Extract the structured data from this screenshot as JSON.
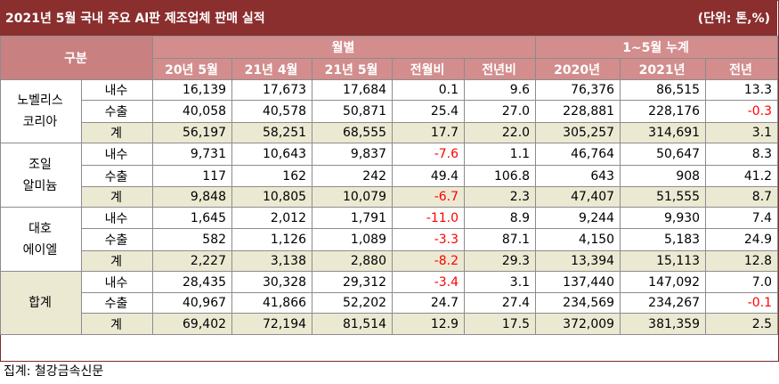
{
  "title": "2021년 5월 국내 주요 Al판  제조업체 판매 실적",
  "unit": "(단위: 톤,%)",
  "headers": {
    "category": "구분",
    "monthly_group": "월별",
    "cumulative_group": "1~5월 누계",
    "columns": [
      "20년 5월",
      "21년 4월",
      "21년 5월",
      "전월비",
      "전년비",
      "2020년",
      "2021년",
      "전년"
    ]
  },
  "companies": [
    {
      "name": "노벨리스 코리아",
      "rows": [
        {
          "label": "내수",
          "cells": [
            "16,139",
            "17,673",
            "17,684",
            "0.1",
            "9.6",
            "76,376",
            "86,515",
            "13.3"
          ]
        },
        {
          "label": "수출",
          "cells": [
            "40,058",
            "40,578",
            "50,871",
            "25.4",
            "27.0",
            "228,881",
            "228,176",
            "-0.3"
          ]
        },
        {
          "label": "계",
          "cells": [
            "56,197",
            "58,251",
            "68,555",
            "17.7",
            "22.0",
            "305,257",
            "314,691",
            "3.1"
          ]
        }
      ]
    },
    {
      "name": "조일 알미늄",
      "rows": [
        {
          "label": "내수",
          "cells": [
            "9,731",
            "10,643",
            "9,837",
            "-7.6",
            "1.1",
            "46,764",
            "50,647",
            "8.3"
          ]
        },
        {
          "label": "수출",
          "cells": [
            "117",
            "162",
            "242",
            "49.4",
            "106.8",
            "643",
            "908",
            "41.2"
          ]
        },
        {
          "label": "계",
          "cells": [
            "9,848",
            "10,805",
            "10,079",
            "-6.7",
            "2.3",
            "47,407",
            "51,555",
            "8.7"
          ]
        }
      ]
    },
    {
      "name": "대호 에이엘",
      "rows": [
        {
          "label": "내수",
          "cells": [
            "1,645",
            "2,012",
            "1,791",
            "-11.0",
            "8.9",
            "9,244",
            "9,930",
            "7.4"
          ]
        },
        {
          "label": "수출",
          "cells": [
            "582",
            "1,126",
            "1,089",
            "-3.3",
            "87.1",
            "4,150",
            "5,183",
            "24.9"
          ]
        },
        {
          "label": "계",
          "cells": [
            "2,227",
            "3,138",
            "2,880",
            "-8.2",
            "29.3",
            "13,394",
            "15,113",
            "12.8"
          ]
        }
      ]
    },
    {
      "name": "합계",
      "rows": [
        {
          "label": "내수",
          "cells": [
            "28,435",
            "30,328",
            "29,312",
            "-3.4",
            "3.1",
            "137,440",
            "147,092",
            "7.0"
          ]
        },
        {
          "label": "수출",
          "cells": [
            "40,967",
            "41,866",
            "52,202",
            "24.7",
            "27.4",
            "234,569",
            "234,267",
            "-0.1"
          ]
        },
        {
          "label": "계",
          "cells": [
            "69,402",
            "72,194",
            "81,514",
            "12.9",
            "17.5",
            "372,009",
            "381,359",
            "2.5"
          ]
        }
      ]
    }
  ],
  "source": "집계: 철강금속신문",
  "colors": {
    "title_bg": "#8b2e2e",
    "header_bg": "#d38d8d",
    "total_row_bg": "#ece9d3",
    "negative": "#ff0000"
  }
}
